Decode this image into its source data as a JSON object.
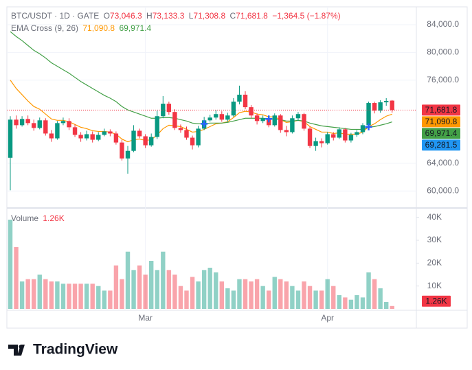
{
  "chart_data": {
    "type": "candlestick",
    "header": {
      "symbol": "BTC/USDT · 1D · GATE",
      "ohlc": [
        {
          "key": "O",
          "value": "73,046.3"
        },
        {
          "key": "H",
          "value": "73,133.3"
        },
        {
          "key": "L",
          "value": "71,308.8"
        },
        {
          "key": "C",
          "value": "71,681.8"
        }
      ],
      "change": "−1,364.5 (−1.87%)",
      "indicator": "EMA Cross (9, 26)",
      "indicator_values": [
        "71,090.8",
        "69,971.4"
      ],
      "volume_title": "Volume",
      "volume_value": "1.26K"
    },
    "categories": [
      null,
      null,
      null,
      null,
      null,
      null,
      null,
      null,
      null,
      null,
      null,
      null,
      null,
      null,
      null,
      null,
      null,
      null,
      null,
      null,
      null,
      null,
      null,
      "Mar",
      null,
      null,
      null,
      null,
      null,
      null,
      null,
      null,
      null,
      null,
      null,
      null,
      null,
      null,
      null,
      null,
      null,
      null,
      null,
      null,
      null,
      null,
      null,
      null,
      null,
      null,
      null,
      null,
      null,
      null,
      "Apr",
      null,
      null,
      null,
      null,
      null,
      null,
      null,
      null,
      null,
      null,
      null
    ],
    "open": [
      64800,
      70300,
      69500,
      70400,
      69800,
      69100,
      70200,
      68300,
      67600,
      69800,
      70100,
      69200,
      68100,
      67600,
      68200,
      67400,
      68100,
      68600,
      68300,
      67000,
      64700,
      65800,
      68700,
      67900,
      66600,
      67800,
      70800,
      72600,
      71400,
      69100,
      68800,
      67700,
      66600,
      69000,
      70200,
      70600,
      71100,
      70300,
      70900,
      72900,
      73900,
      72100,
      70900,
      70100,
      70500,
      69500,
      70900,
      68800,
      68500,
      70500,
      71100,
      69000,
      66500,
      67200,
      66900,
      68200,
      67700,
      68900,
      67300,
      68100,
      68500,
      69500,
      72700,
      71600,
      72800,
      73046.3
    ],
    "high": [
      70800,
      70900,
      70800,
      70900,
      70300,
      70600,
      70500,
      68800,
      70100,
      70600,
      70500,
      69600,
      68500,
      68700,
      68600,
      68500,
      69000,
      68900,
      68600,
      67400,
      66500,
      69500,
      69000,
      68200,
      68300,
      71600,
      73700,
      72900,
      71800,
      69600,
      69300,
      68000,
      69400,
      70700,
      71000,
      71700,
      71500,
      71300,
      73400,
      75200,
      74400,
      72400,
      71200,
      70900,
      70900,
      71200,
      71100,
      69400,
      70900,
      71400,
      71300,
      69300,
      67700,
      67600,
      68500,
      68500,
      69200,
      69100,
      68400,
      68800,
      69800,
      72900,
      72900,
      73100,
      73400,
      73133.3
    ],
    "low": [
      60100,
      69000,
      69300,
      69500,
      68700,
      68900,
      68000,
      67100,
      67400,
      69500,
      68800,
      67800,
      67100,
      67300,
      67000,
      67200,
      67900,
      67900,
      66700,
      64400,
      62500,
      65600,
      67600,
      66200,
      66400,
      67500,
      70500,
      71000,
      68800,
      68400,
      67400,
      66000,
      66300,
      68800,
      70000,
      70300,
      70000,
      70000,
      70700,
      72500,
      71800,
      70500,
      69600,
      69800,
      69200,
      69300,
      68400,
      67900,
      68300,
      70100,
      68700,
      66200,
      65800,
      66300,
      66700,
      67300,
      67500,
      67000,
      67000,
      67800,
      68200,
      69200,
      71200,
      71300,
      72300,
      71308.8
    ],
    "close": [
      70300,
      69500,
      70400,
      69800,
      69100,
      70200,
      68300,
      67600,
      69800,
      70100,
      69200,
      68100,
      67600,
      68200,
      67400,
      68100,
      68600,
      68300,
      67000,
      64700,
      65800,
      68700,
      67900,
      66600,
      67800,
      70800,
      72600,
      71400,
      69100,
      68800,
      67700,
      66600,
      69000,
      70200,
      70600,
      71100,
      70300,
      70900,
      72900,
      73900,
      72100,
      70900,
      70100,
      70500,
      69500,
      70900,
      68800,
      68500,
      70500,
      71100,
      69000,
      66500,
      67200,
      66900,
      68200,
      67700,
      68900,
      67300,
      68100,
      68500,
      69500,
      72700,
      71600,
      72800,
      73000,
      71681.8
    ],
    "up_color": "#089981",
    "down_color": "#f23645",
    "series": [
      {
        "color": "#ff9800",
        "values": [
          76000,
          74800,
          73900,
          73000,
          72200,
          71800,
          71100,
          70400,
          70200,
          70200,
          70000,
          69600,
          69200,
          69000,
          68700,
          68600,
          68600,
          68500,
          68200,
          67500,
          67100,
          67400,
          67500,
          67300,
          67400,
          68100,
          69000,
          69500,
          69400,
          69300,
          68900,
          68500,
          68600,
          68900,
          69300,
          69700,
          69800,
          70000,
          70600,
          71300,
          71500,
          71400,
          71100,
          71000,
          70700,
          70700,
          70300,
          69900,
          70000,
          70200,
          70000,
          69300,
          68900,
          68500,
          68500,
          68300,
          68400,
          68200,
          68200,
          68200,
          68500,
          69300,
          69700,
          70300,
          70800,
          71090.8
        ]
      },
      {
        "color": "#43a047",
        "values": [
          83000,
          82300,
          81700,
          81000,
          80300,
          79800,
          79200,
          78500,
          78000,
          77500,
          77000,
          76400,
          75800,
          75300,
          74800,
          74300,
          73800,
          73400,
          72900,
          72200,
          71700,
          71400,
          71100,
          70800,
          70500,
          70500,
          70600,
          70600,
          70500,
          70300,
          70100,
          69800,
          69700,
          69700,
          69800,
          69800,
          69800,
          69900,
          70100,
          70300,
          70500,
          70500,
          70500,
          70500,
          70400,
          70400,
          70300,
          70100,
          70100,
          70200,
          70100,
          69800,
          69600,
          69400,
          69300,
          69200,
          69100,
          69000,
          68900,
          68900,
          68900,
          69200,
          69300,
          69500,
          69700,
          69971.4
        ]
      }
    ],
    "cross_markers": {
      "index": [
        33,
        44,
        61
      ],
      "values": [
        69700,
        70400,
        69250
      ],
      "color": "#2962ff"
    },
    "ylim": [
      57850,
      86570
    ],
    "yticks": [
      {
        "value": 60000,
        "label": "60,000.0"
      },
      {
        "value": 64000,
        "label": "64,000.0"
      },
      {
        "value": 76000,
        "label": "76,000.0"
      },
      {
        "value": 80000,
        "label": "80,000.0"
      },
      {
        "value": 84000,
        "label": "84,000.0"
      }
    ],
    "price_tags": [
      {
        "value": 71681.8,
        "label": "71,681.8",
        "color": "#f23645"
      },
      {
        "value": 71090.8,
        "label": "71,090.8",
        "color": "#ff9800"
      },
      {
        "value": 69971.4,
        "label": "69,971.4",
        "color": "#43a047"
      },
      {
        "value": 69281.5,
        "label": "69,281.5",
        "color": "#2196f3"
      }
    ],
    "volume": [
      39000,
      27000,
      12000,
      13000,
      13000,
      15000,
      13000,
      12000,
      12000,
      11000,
      11000,
      11000,
      11000,
      11000,
      11000,
      10000,
      8000,
      8000,
      19000,
      13000,
      25000,
      17000,
      19000,
      15000,
      21000,
      17000,
      25000,
      17000,
      15000,
      10000,
      8000,
      14000,
      12000,
      17000,
      18000,
      16000,
      12000,
      9000,
      8000,
      13000,
      13000,
      12000,
      13000,
      10000,
      8000,
      14000,
      13000,
      12000,
      10000,
      8000,
      12000,
      10000,
      8000,
      8000,
      13000,
      10000,
      6000,
      5000,
      4000,
      6000,
      5000,
      16000,
      13000,
      9000,
      3000,
      1260
    ],
    "volume_ylim": [
      0,
      43500
    ],
    "volume_ticks": [
      {
        "value": 10000,
        "label": "10K"
      },
      {
        "value": 20000,
        "label": "20K"
      },
      {
        "value": 30000,
        "label": "30K"
      },
      {
        "value": 40000,
        "label": "40K"
      }
    ],
    "volume_tag": {
      "value": 1260,
      "label": "1.26K"
    },
    "grid": true,
    "logo": "TradingView"
  }
}
